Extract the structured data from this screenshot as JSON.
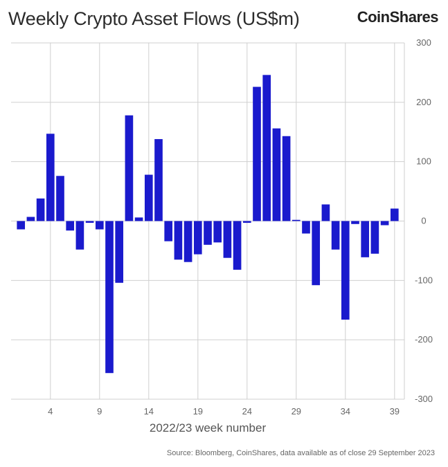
{
  "header": {
    "title": "Weekly Crypto Asset Flows (US$m)",
    "brand": "CoinShares"
  },
  "footer": {
    "source": "Source: Bloomberg, CoinShares, data available as of close 29 September 2023"
  },
  "chart_data": {
    "type": "bar",
    "title": "Weekly Crypto Asset Flows (US$m)",
    "xlabel": "2022/23 week number",
    "ylabel": "",
    "ylim": [
      -300,
      300
    ],
    "xlim": [
      0,
      40
    ],
    "grid": true,
    "color": "#1a1acd",
    "y_ticks": [
      300,
      200,
      100,
      0,
      -100,
      -200,
      -300
    ],
    "x_ticks": [
      4,
      9,
      14,
      19,
      24,
      29,
      34,
      39
    ],
    "x": [
      1,
      2,
      3,
      4,
      5,
      6,
      7,
      8,
      9,
      10,
      11,
      12,
      13,
      14,
      15,
      16,
      17,
      18,
      19,
      20,
      21,
      22,
      23,
      24,
      25,
      26,
      27,
      28,
      29,
      30,
      31,
      32,
      33,
      34,
      35,
      36,
      37,
      38,
      39
    ],
    "values": [
      -14,
      7,
      38,
      147,
      76,
      -16,
      -48,
      -3,
      -14,
      -256,
      -104,
      178,
      6,
      78,
      138,
      -34,
      -65,
      -69,
      -56,
      -40,
      -36,
      -62,
      -82,
      -3,
      226,
      246,
      156,
      143,
      2,
      -21,
      -108,
      28,
      -48,
      -166,
      -5,
      -61,
      -55,
      -7,
      21
    ]
  }
}
